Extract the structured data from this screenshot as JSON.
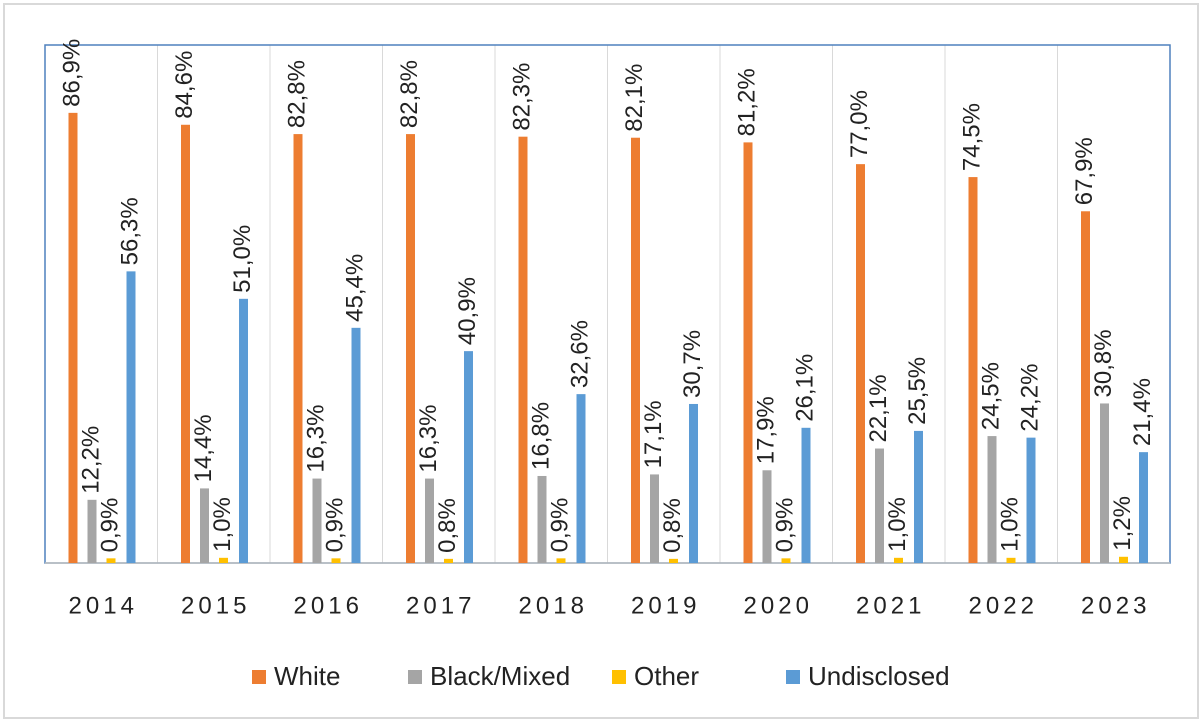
{
  "chart_data": {
    "type": "bar",
    "categories": [
      "2014",
      "2015",
      "2016",
      "2017",
      "2018",
      "2019",
      "2020",
      "2021",
      "2022",
      "2023"
    ],
    "ylim": [
      0,
      100
    ],
    "series": [
      {
        "name": "White",
        "color": "#ed7d31",
        "values": [
          86.9,
          84.6,
          82.8,
          82.8,
          82.3,
          82.1,
          81.2,
          77.0,
          74.5,
          67.9
        ],
        "value_labels": [
          "86,9%",
          "84,6%",
          "82,8%",
          "82,8%",
          "82,3%",
          "82,1%",
          "81,2%",
          "77,0%",
          "74,5%",
          "67,9%"
        ]
      },
      {
        "name": "Black/Mixed",
        "color": "#a5a5a5",
        "values": [
          12.2,
          14.4,
          16.3,
          16.3,
          16.8,
          17.1,
          17.9,
          22.1,
          24.5,
          30.8
        ],
        "value_labels": [
          "12,2%",
          "14,4%",
          "16,3%",
          "16,3%",
          "16,8%",
          "17,1%",
          "17,9%",
          "22,1%",
          "24,5%",
          "30,8%"
        ]
      },
      {
        "name": "Other",
        "color": "#ffc000",
        "values": [
          0.9,
          1.0,
          0.9,
          0.8,
          0.9,
          0.8,
          0.9,
          1.0,
          1.0,
          1.2
        ],
        "value_labels": [
          "0,9%",
          "1,0%",
          "0,9%",
          "0,8%",
          "0,9%",
          "0,8%",
          "0,9%",
          "1,0%",
          "1,0%",
          "1,2%"
        ]
      },
      {
        "name": "Undisclosed",
        "color": "#5b9bd5",
        "values": [
          56.3,
          51.0,
          45.4,
          40.9,
          32.6,
          30.7,
          26.1,
          25.5,
          24.2,
          21.4
        ],
        "value_labels": [
          "56,3%",
          "51,0%",
          "45,4%",
          "40,9%",
          "32,6%",
          "30,7%",
          "26,1%",
          "25,5%",
          "24,2%",
          "21,4%"
        ]
      }
    ]
  }
}
